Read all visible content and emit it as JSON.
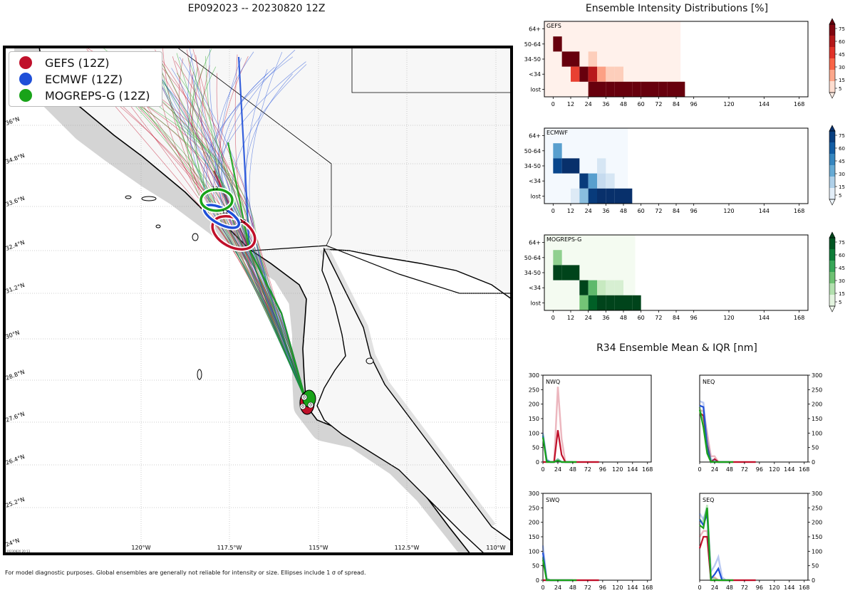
{
  "map": {
    "title": "EP092023 -- 20230820 12Z",
    "legend": [
      {
        "label": "GEFS (12Z)",
        "color": "#c0102a"
      },
      {
        "label": "ECMWF (12Z)",
        "color": "#1f4fd8"
      },
      {
        "label": "MOGREPS-G (12Z)",
        "color": "#19a319"
      }
    ],
    "lat_labels": [
      "36°N",
      "34.8°N",
      "33.6°N",
      "32.4°N",
      "31.2°N",
      "30°N",
      "28.8°N",
      "27.6°N",
      "26.4°N",
      "25.2°N",
      "24°N"
    ],
    "lon_labels": [
      "120°W",
      "117.5°W",
      "115°W",
      "112.5°W",
      "110°W"
    ],
    "ellipse_label": "12",
    "start_label": "0",
    "footnote": "For model diagnostic purposes. Global ensembles are generally not reliable for intensity or size. Ellipses include 1 σ of spread.",
    "stamp": "20230820 20:13"
  },
  "chart_data": [
    {
      "type": "heatmap",
      "title": "Ensemble Intensity Distributions [%]",
      "panels": [
        {
          "name": "GEFS",
          "colormap": "reds",
          "rows": [
            "64+",
            "50-64",
            "34-50",
            "<34",
            "lost"
          ],
          "x_ticks": [
            0,
            12,
            24,
            36,
            48,
            60,
            72,
            84,
            96,
            120,
            144,
            168
          ],
          "colorbar_ticks": [
            5,
            15,
            30,
            45,
            60,
            75
          ],
          "data_extent_hours": 87,
          "cells": [
            {
              "row": "50-64",
              "hour": 0,
              "value": 100
            },
            {
              "row": "34-50",
              "hour": 6,
              "value": 100
            },
            {
              "row": "34-50",
              "hour": 12,
              "value": 100
            },
            {
              "row": "34-50",
              "hour": 24,
              "value": 10
            },
            {
              "row": "<34",
              "hour": 12,
              "value": 40
            },
            {
              "row": "<34",
              "hour": 18,
              "value": 95
            },
            {
              "row": "<34",
              "hour": 24,
              "value": 55
            },
            {
              "row": "<34",
              "hour": 30,
              "value": 20
            },
            {
              "row": "<34",
              "hour": 36,
              "value": 10
            },
            {
              "row": "<34",
              "hour": 42,
              "value": 10
            },
            {
              "row": "lost",
              "hour": 24,
              "value": 85
            },
            {
              "row": "lost",
              "hour": 30,
              "value": 100
            },
            {
              "row": "lost",
              "hour": 36,
              "value": 100
            },
            {
              "row": "lost",
              "hour": 42,
              "value": 100
            },
            {
              "row": "lost",
              "hour": 48,
              "value": 100
            },
            {
              "row": "lost",
              "hour": 54,
              "value": 100
            },
            {
              "row": "lost",
              "hour": 60,
              "value": 100
            },
            {
              "row": "lost",
              "hour": 66,
              "value": 100
            },
            {
              "row": "lost",
              "hour": 72,
              "value": 100
            },
            {
              "row": "lost",
              "hour": 78,
              "value": 100
            },
            {
              "row": "lost",
              "hour": 84,
              "value": 100
            }
          ]
        },
        {
          "name": "ECMWF",
          "colormap": "blues",
          "rows": [
            "64+",
            "50-64",
            "34-50",
            "<34",
            "lost"
          ],
          "x_ticks": [
            0,
            12,
            24,
            36,
            48,
            60,
            72,
            84,
            96,
            120,
            144,
            168
          ],
          "colorbar_ticks": [
            5,
            15,
            30,
            45,
            60,
            75
          ],
          "data_extent_hours": 51,
          "cells": [
            {
              "row": "50-64",
              "hour": 0,
              "value": 35
            },
            {
              "row": "34-50",
              "hour": 0,
              "value": 65
            },
            {
              "row": "34-50",
              "hour": 6,
              "value": 100
            },
            {
              "row": "34-50",
              "hour": 12,
              "value": 100
            },
            {
              "row": "34-50",
              "hour": 30,
              "value": 10
            },
            {
              "row": "<34",
              "hour": 18,
              "value": 70
            },
            {
              "row": "<34",
              "hour": 24,
              "value": 35
            },
            {
              "row": "<34",
              "hour": 30,
              "value": 15
            },
            {
              "row": "<34",
              "hour": 36,
              "value": 10
            },
            {
              "row": "lost",
              "hour": 12,
              "value": 8
            },
            {
              "row": "lost",
              "hour": 18,
              "value": 25
            },
            {
              "row": "lost",
              "hour": 24,
              "value": 70
            },
            {
              "row": "lost",
              "hour": 30,
              "value": 75
            },
            {
              "row": "lost",
              "hour": 36,
              "value": 90
            },
            {
              "row": "lost",
              "hour": 42,
              "value": 100
            },
            {
              "row": "lost",
              "hour": 48,
              "value": 100
            }
          ]
        },
        {
          "name": "MOGREPS-G",
          "colormap": "greens",
          "rows": [
            "64+",
            "50-64",
            "34-50",
            "<34",
            "lost"
          ],
          "x_ticks": [
            0,
            12,
            24,
            36,
            48,
            60,
            72,
            84,
            96,
            120,
            144,
            168
          ],
          "colorbar_ticks": [
            5,
            15,
            30,
            45,
            60,
            75
          ],
          "data_extent_hours": 56,
          "cells": [
            {
              "row": "50-64",
              "hour": 0,
              "value": 25
            },
            {
              "row": "34-50",
              "hour": 0,
              "value": 75
            },
            {
              "row": "34-50",
              "hour": 6,
              "value": 100
            },
            {
              "row": "34-50",
              "hour": 12,
              "value": 100
            },
            {
              "row": "<34",
              "hour": 18,
              "value": 80
            },
            {
              "row": "<34",
              "hour": 24,
              "value": 35
            },
            {
              "row": "<34",
              "hour": 30,
              "value": 15
            },
            {
              "row": "<34",
              "hour": 36,
              "value": 10
            },
            {
              "row": "<34",
              "hour": 42,
              "value": 10
            },
            {
              "row": "lost",
              "hour": 18,
              "value": 30
            },
            {
              "row": "lost",
              "hour": 24,
              "value": 65
            },
            {
              "row": "lost",
              "hour": 30,
              "value": 100
            },
            {
              "row": "lost",
              "hour": 36,
              "value": 100
            },
            {
              "row": "lost",
              "hour": 42,
              "value": 100
            },
            {
              "row": "lost",
              "hour": 48,
              "value": 100
            },
            {
              "row": "lost",
              "hour": 54,
              "value": 100
            }
          ]
        }
      ]
    },
    {
      "type": "line",
      "title": "R34 Ensemble Mean & IQR [nm]",
      "ylim": [
        0,
        300
      ],
      "y_ticks": [
        0,
        50,
        100,
        150,
        200,
        250,
        300
      ],
      "x_ticks": [
        0,
        24,
        48,
        72,
        96,
        120,
        144,
        168
      ],
      "xlim": [
        0,
        174
      ],
      "panels": [
        {
          "name": "NWQ",
          "series": [
            {
              "name": "GEFS",
              "color": "#c0102a",
              "x": [
                0,
                6,
                12,
                18,
                24,
                30,
                36,
                42,
                48,
                60,
                72,
                84,
                90
              ],
              "y": [
                0,
                0,
                0,
                0,
                110,
                25,
                0,
                0,
                0,
                0,
                0,
                0,
                0
              ],
              "iqr_hi": [
                0,
                0,
                0,
                0,
                260,
                80,
                0,
                0,
                0,
                0,
                0,
                0,
                0
              ]
            },
            {
              "name": "ECMWF",
              "color": "#1f4fd8",
              "x": [
                0,
                6,
                12,
                18,
                24,
                30,
                36,
                42,
                48
              ],
              "y": [
                90,
                5,
                0,
                0,
                5,
                0,
                0,
                0,
                0
              ],
              "iqr_hi": [
                100,
                10,
                0,
                0,
                10,
                0,
                0,
                0,
                0
              ]
            },
            {
              "name": "MOGREPS-G",
              "color": "#19a319",
              "x": [
                0,
                6,
                12,
                18,
                24,
                30,
                36,
                42,
                48,
                54
              ],
              "y": [
                85,
                0,
                0,
                0,
                5,
                0,
                0,
                0,
                0,
                0
              ],
              "iqr_hi": [
                95,
                5,
                0,
                0,
                10,
                0,
                0,
                0,
                0,
                0
              ]
            }
          ]
        },
        {
          "name": "NEQ",
          "series": [
            {
              "name": "GEFS",
              "color": "#c0102a",
              "x": [
                0,
                6,
                12,
                18,
                24,
                30,
                36,
                42,
                48,
                60,
                72,
                84,
                90
              ],
              "y": [
                170,
                160,
                60,
                0,
                10,
                0,
                0,
                0,
                0,
                0,
                0,
                0,
                0
              ],
              "iqr_hi": [
                180,
                175,
                100,
                20,
                20,
                0,
                0,
                0,
                0,
                0,
                0,
                0,
                0
              ]
            },
            {
              "name": "ECMWF",
              "color": "#1f4fd8",
              "x": [
                0,
                6,
                12,
                18,
                24,
                30,
                36,
                42,
                48
              ],
              "y": [
                195,
                190,
                50,
                0,
                0,
                0,
                0,
                0,
                0
              ],
              "iqr_hi": [
                210,
                205,
                80,
                10,
                5,
                0,
                0,
                0,
                0
              ]
            },
            {
              "name": "MOGREPS-G",
              "color": "#19a319",
              "x": [
                0,
                6,
                12,
                18,
                24,
                30,
                36,
                42,
                48,
                54
              ],
              "y": [
                180,
                120,
                30,
                0,
                0,
                0,
                0,
                0,
                0,
                0
              ],
              "iqr_hi": [
                190,
                140,
                50,
                5,
                0,
                0,
                0,
                0,
                0,
                0
              ]
            }
          ]
        },
        {
          "name": "SWQ",
          "series": [
            {
              "name": "GEFS",
              "color": "#c0102a",
              "x": [
                0,
                6,
                12,
                18,
                24,
                30,
                36,
                42,
                48,
                60,
                72,
                84,
                90
              ],
              "y": [
                0,
                0,
                0,
                0,
                0,
                0,
                0,
                0,
                0,
                0,
                0,
                0,
                0
              ],
              "iqr_hi": [
                0,
                0,
                0,
                0,
                0,
                0,
                0,
                0,
                0,
                0,
                0,
                0,
                0
              ]
            },
            {
              "name": "ECMWF",
              "color": "#1f4fd8",
              "x": [
                0,
                6,
                12,
                18,
                24,
                30,
                36,
                42,
                48
              ],
              "y": [
                95,
                0,
                0,
                0,
                0,
                0,
                0,
                0,
                0
              ],
              "iqr_hi": [
                120,
                5,
                0,
                0,
                0,
                0,
                0,
                0,
                0
              ]
            },
            {
              "name": "MOGREPS-G",
              "color": "#19a319",
              "x": [
                0,
                6,
                12,
                18,
                24,
                30,
                36,
                42,
                48,
                54
              ],
              "y": [
                70,
                0,
                0,
                0,
                0,
                0,
                0,
                0,
                0,
                0
              ],
              "iqr_hi": [
                80,
                5,
                0,
                0,
                0,
                0,
                0,
                0,
                0,
                0
              ]
            }
          ]
        },
        {
          "name": "SEQ",
          "series": [
            {
              "name": "GEFS",
              "color": "#c0102a",
              "x": [
                0,
                6,
                12,
                18,
                24,
                30,
                36,
                42,
                48,
                60,
                72,
                84,
                90
              ],
              "y": [
                110,
                150,
                150,
                0,
                0,
                0,
                0,
                0,
                0,
                0,
                0,
                0,
                0
              ],
              "iqr_hi": [
                150,
                170,
                170,
                10,
                10,
                0,
                0,
                0,
                0,
                0,
                0,
                0,
                0
              ]
            },
            {
              "name": "ECMWF",
              "color": "#1f4fd8",
              "x": [
                0,
                6,
                12,
                18,
                24,
                30,
                36,
                42,
                48
              ],
              "y": [
                210,
                190,
                230,
                5,
                20,
                40,
                0,
                0,
                0
              ],
              "iqr_hi": [
                230,
                210,
                250,
                30,
                50,
                80,
                10,
                0,
                0
              ]
            },
            {
              "name": "MOGREPS-G",
              "color": "#19a319",
              "x": [
                0,
                6,
                12,
                18,
                24,
                30,
                36,
                42,
                48,
                54
              ],
              "y": [
                190,
                180,
                250,
                0,
                0,
                0,
                0,
                0,
                0,
                0
              ],
              "iqr_hi": [
                210,
                200,
                260,
                10,
                5,
                0,
                0,
                0,
                0,
                0
              ]
            }
          ]
        }
      ]
    }
  ]
}
